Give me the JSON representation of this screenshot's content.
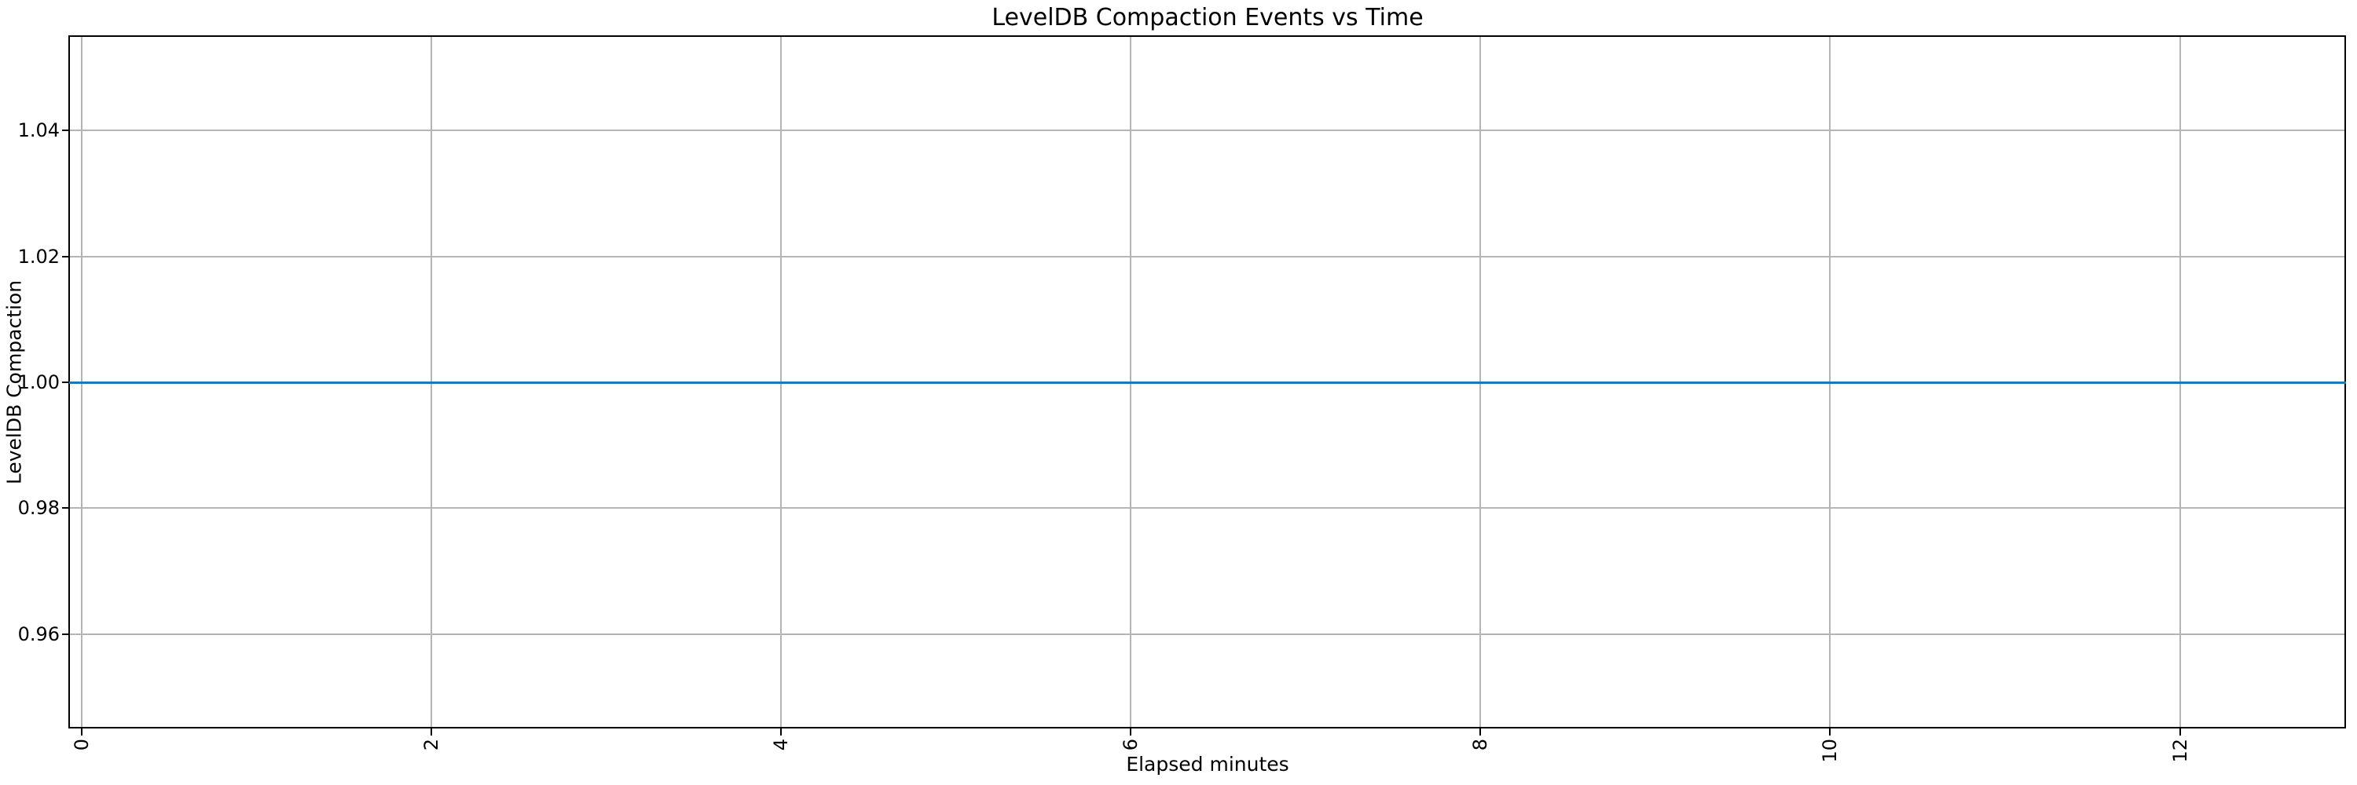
{
  "chart_data": {
    "type": "line",
    "title": "LevelDB Compaction Events vs Time",
    "xlabel": "Elapsed minutes",
    "ylabel": "LevelDB Compaction",
    "xlim": [
      -0.07,
      12.95
    ],
    "ylim": [
      0.945,
      1.055
    ],
    "xticks": [
      0,
      2,
      4,
      6,
      8,
      10,
      12
    ],
    "xtick_labels": [
      "0",
      "2",
      "4",
      "6",
      "8",
      "10",
      "12"
    ],
    "xtick_rotation_deg": 90,
    "yticks": [
      0.96,
      0.98,
      1.0,
      1.02,
      1.04
    ],
    "ytick_labels": [
      "0.96",
      "0.98",
      "1.00",
      "1.02",
      "1.04"
    ],
    "grid": true,
    "grid_color": "#b5b5b5",
    "axis_color": "#000000",
    "background_color": "#ffffff",
    "legend": null,
    "series": [
      {
        "name": "LevelDB Compaction",
        "color": "#1f77b4",
        "y_constant": 1.0,
        "x_start": -0.07,
        "x_end": 12.95
      }
    ]
  }
}
